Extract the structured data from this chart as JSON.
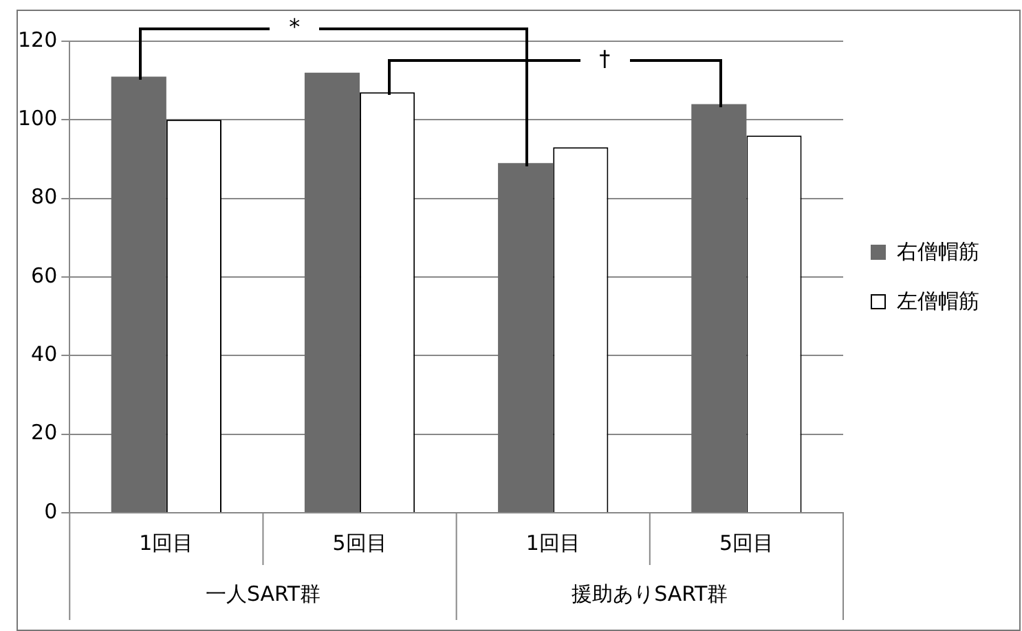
{
  "chart_data": {
    "type": "bar",
    "categories": [
      "1回目",
      "5回目",
      "1回目",
      "5回目"
    ],
    "series": [
      {
        "name": "右僧帽筋",
        "color": "#6b6b6b",
        "values": [
          111,
          112,
          89,
          104
        ]
      },
      {
        "name": "左僧帽筋",
        "color": "#ffffff",
        "values": [
          100,
          107,
          93,
          96
        ]
      }
    ],
    "ylim": [
      0,
      120
    ],
    "yticks": [
      0,
      20,
      40,
      60,
      80,
      100,
      120
    ],
    "grid": "y",
    "legend": "right",
    "annotations": [
      "*",
      "†",
      "一人SART群",
      "援助ありSART群"
    ]
  }
}
